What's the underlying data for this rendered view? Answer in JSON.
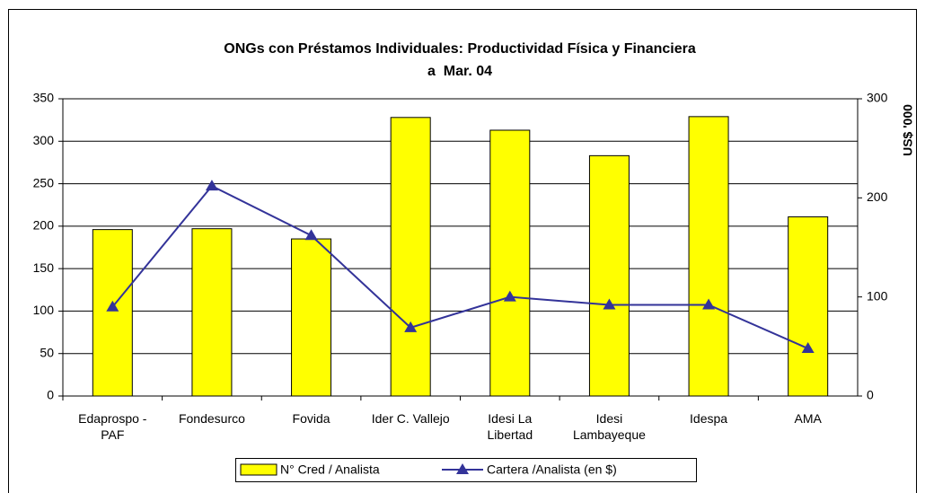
{
  "chart_data": {
    "type": "combo",
    "title": "ONGs con Préstamos Individuales: Productividad Física y Financiera",
    "subtitle": "a  Mar. 04",
    "y2_label": "US$ '000",
    "categories": [
      "Edaprospo -\nPAF",
      "Fondesurco",
      "Fovida",
      "Ider C. Vallejo",
      "Idesi La\nLibertad",
      "Idesi\nLambayeque",
      "Idespa",
      "AMA"
    ],
    "series": [
      {
        "name": "N° Cred / Analista",
        "type": "bar",
        "color": "#ffff00",
        "values": [
          196,
          197,
          185,
          328,
          313,
          283,
          329,
          211
        ]
      },
      {
        "name": "Cartera /Analista (en $)",
        "type": "line",
        "axis": "y2",
        "color": "#333399",
        "values": [
          90,
          212,
          162,
          69,
          100,
          92,
          92,
          48
        ]
      }
    ],
    "ylim": [
      0,
      350
    ],
    "yticks": [
      0,
      50,
      100,
      150,
      200,
      250,
      300,
      350
    ],
    "y2lim": [
      0,
      300
    ],
    "y2ticks": [
      0,
      100,
      200,
      300
    ],
    "grid": true
  }
}
